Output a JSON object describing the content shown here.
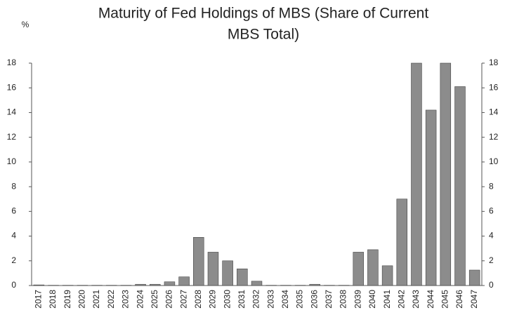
{
  "chart_data": {
    "type": "bar",
    "title": "Maturity of Fed Holdings of MBS (Share of Current",
    "subtitle": "MBS Total)",
    "y_label": "%",
    "categories": [
      "2017",
      "2018",
      "2019",
      "2020",
      "2021",
      "2022",
      "2023",
      "2024",
      "2025",
      "2026",
      "2027",
      "2028",
      "2029",
      "2030",
      "2031",
      "2032",
      "2033",
      "2034",
      "2035",
      "2036",
      "2037",
      "2038",
      "2039",
      "2040",
      "2041",
      "2042",
      "2043",
      "2044",
      "2045",
      "2046",
      "2047"
    ],
    "values": [
      0.05,
      0.02,
      0.02,
      0.02,
      0.02,
      0.02,
      0.02,
      0.1,
      0.1,
      0.3,
      0.7,
      3.9,
      2.7,
      2.0,
      1.35,
      0.35,
      0.02,
      0.02,
      0.02,
      0.1,
      0.02,
      0.02,
      2.7,
      2.9,
      1.6,
      7.0,
      18,
      14.2,
      18,
      16.1,
      1.25
    ],
    "color": "#8c8c8c",
    "ylim": [
      0,
      18
    ],
    "yticks": [
      0,
      2,
      4,
      6,
      8,
      10,
      12,
      14,
      16,
      18
    ],
    "grid": false
  }
}
